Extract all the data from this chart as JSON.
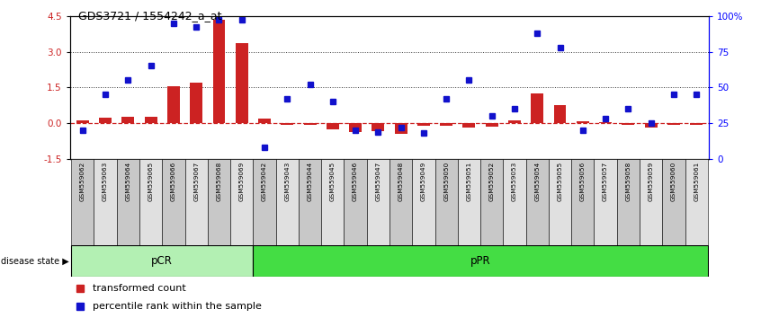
{
  "title": "GDS3721 / 1554242_a_at",
  "samples": [
    "GSM559062",
    "GSM559063",
    "GSM559064",
    "GSM559065",
    "GSM559066",
    "GSM559067",
    "GSM559068",
    "GSM559069",
    "GSM559042",
    "GSM559043",
    "GSM559044",
    "GSM559045",
    "GSM559046",
    "GSM559047",
    "GSM559048",
    "GSM559049",
    "GSM559050",
    "GSM559051",
    "GSM559052",
    "GSM559053",
    "GSM559054",
    "GSM559055",
    "GSM559056",
    "GSM559057",
    "GSM559058",
    "GSM559059",
    "GSM559060",
    "GSM559061"
  ],
  "transformed_count": [
    0.12,
    0.22,
    0.28,
    0.28,
    1.55,
    1.7,
    4.35,
    3.35,
    0.2,
    -0.05,
    -0.05,
    -0.25,
    -0.38,
    -0.35,
    -0.45,
    -0.12,
    -0.12,
    -0.18,
    -0.15,
    0.12,
    1.25,
    0.75,
    0.08,
    0.05,
    -0.05,
    -0.18,
    -0.08,
    -0.05
  ],
  "percentile_rank": [
    20,
    45,
    55,
    65,
    95,
    92,
    97,
    97,
    8,
    42,
    52,
    40,
    20,
    19,
    22,
    18,
    42,
    55,
    30,
    35,
    88,
    78,
    20,
    28,
    35,
    25,
    45,
    45
  ],
  "pCR_count": 8,
  "pPR_count": 20,
  "group_labels": [
    "pCR",
    "pPR"
  ],
  "pCR_color": "#b3f0b3",
  "pPR_color": "#44dd44",
  "bar_color_red": "#cc2222",
  "dot_color_blue": "#1111cc",
  "zero_line_color": "#cc2222",
  "grid_line_color": "#333333",
  "ylim_left": [
    -1.5,
    4.5
  ],
  "ylim_right": [
    0,
    100
  ],
  "yticks_left": [
    -1.5,
    0.0,
    1.5,
    3.0,
    4.5
  ],
  "yticks_right": [
    0,
    25,
    50,
    75,
    100
  ],
  "ytick_labels_right": [
    "0",
    "25",
    "50",
    "75",
    "100%"
  ],
  "legend_items": [
    "transformed count",
    "percentile rank within the sample"
  ],
  "disease_state_label": "disease state"
}
